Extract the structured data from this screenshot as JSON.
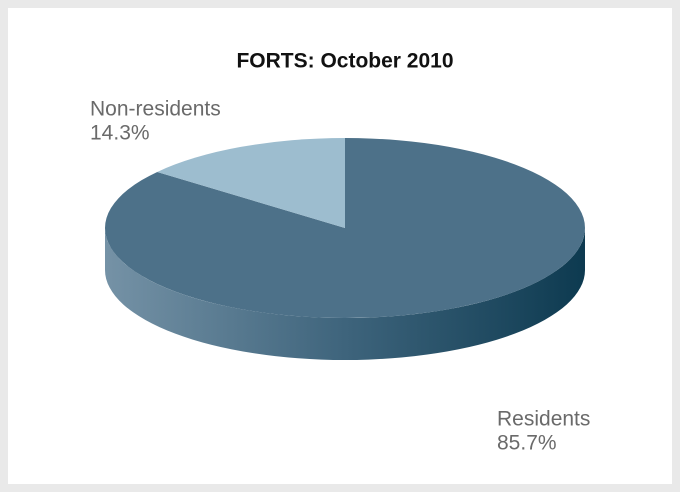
{
  "chart_data": {
    "type": "pie",
    "title": "FORTS: October 2010",
    "categories": [
      "Residents",
      "Non-residents"
    ],
    "values": [
      85.7,
      14.3
    ],
    "value_labels": [
      "85.7%",
      "14.3%"
    ],
    "colors": [
      "#4d7189",
      "#9dbdcf"
    ]
  }
}
